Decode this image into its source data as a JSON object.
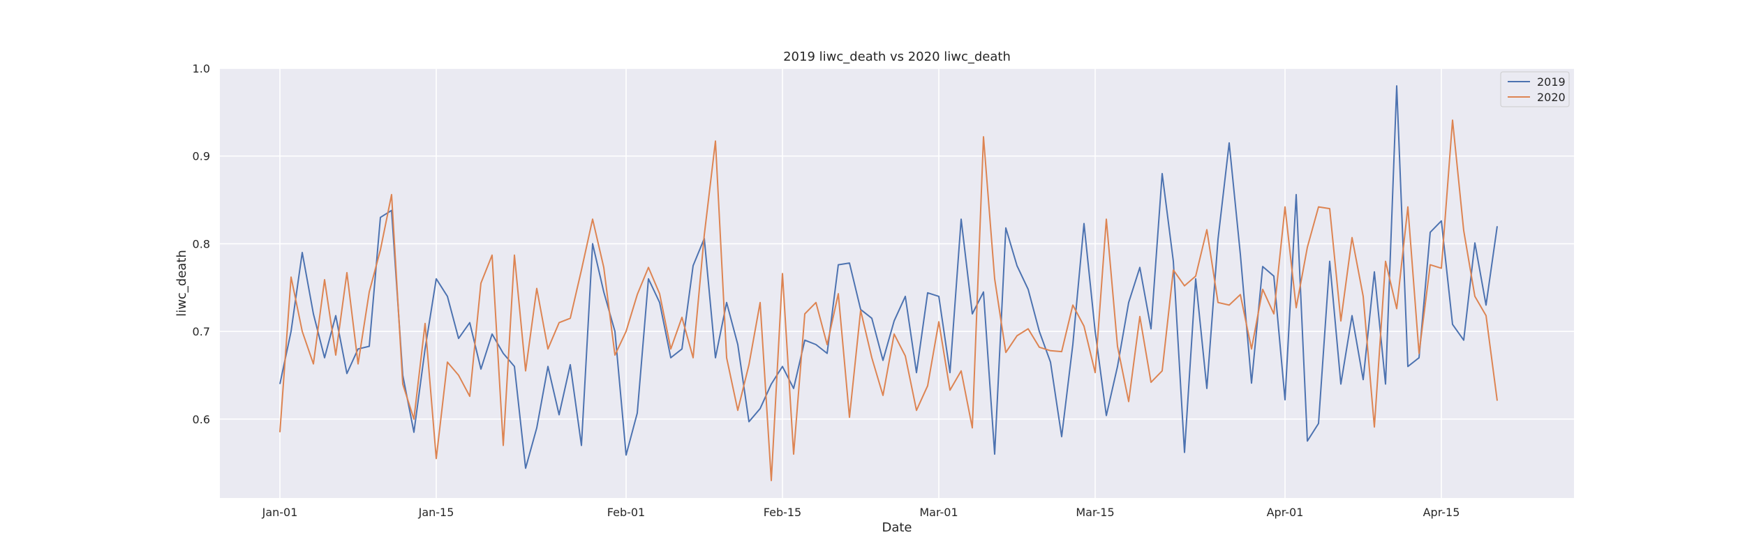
{
  "chart_data": {
    "type": "line",
    "title": "2019 liwc_death vs 2020 liwc_death",
    "xlabel": "Date",
    "ylabel": "liwc_death",
    "x_start": "Jan-01",
    "x_ticks": [
      "Jan-01",
      "Jan-15",
      "Feb-01",
      "Feb-15",
      "Mar-01",
      "Mar-15",
      "Apr-01",
      "Apr-15"
    ],
    "y_ticks": [
      "0.6",
      "0.7",
      "0.8",
      "0.9",
      "1.0"
    ],
    "ylim": [
      0.51,
      1.0
    ],
    "grid": true,
    "legend_position": "top-right",
    "series": [
      {
        "name": "2019",
        "color": "#4c72b0",
        "values": [
          0.64,
          0.7,
          0.79,
          0.72,
          0.67,
          0.718,
          0.652,
          0.68,
          0.683,
          0.83,
          0.838,
          0.65,
          0.585,
          0.68,
          0.76,
          0.74,
          0.692,
          0.71,
          0.657,
          0.697,
          0.675,
          0.66,
          0.544,
          0.59,
          0.66,
          0.605,
          0.662,
          0.57,
          0.8,
          0.745,
          0.7,
          0.559,
          0.607,
          0.76,
          0.733,
          0.67,
          0.68,
          0.775,
          0.806,
          0.67,
          0.733,
          0.685,
          0.597,
          0.612,
          0.64,
          0.66,
          0.635,
          0.69,
          0.685,
          0.675,
          0.776,
          0.778,
          0.725,
          0.715,
          0.667,
          0.712,
          0.74,
          0.653,
          0.744,
          0.74,
          0.653,
          0.828,
          0.72,
          0.745,
          0.56,
          0.818,
          0.775,
          0.748,
          0.7,
          0.665,
          0.58,
          0.685,
          0.823,
          0.7,
          0.604,
          0.66,
          0.733,
          0.773,
          0.703,
          0.88,
          0.78,
          0.562,
          0.76,
          0.635,
          0.805,
          0.915,
          0.788,
          0.641,
          0.774,
          0.763,
          0.622,
          0.856,
          0.575,
          0.595,
          0.78,
          0.64,
          0.718,
          0.645,
          0.768,
          0.64,
          0.98,
          0.66,
          0.67,
          0.813,
          0.826,
          0.708,
          0.69,
          0.801,
          0.73,
          0.82
        ]
      },
      {
        "name": "2020",
        "color": "#dd8452",
        "values": [
          0.585,
          0.762,
          0.7,
          0.663,
          0.759,
          0.673,
          0.767,
          0.663,
          0.745,
          0.793,
          0.856,
          0.64,
          0.6,
          0.709,
          0.555,
          0.665,
          0.65,
          0.626,
          0.755,
          0.787,
          0.57,
          0.787,
          0.655,
          0.749,
          0.68,
          0.71,
          0.715,
          0.77,
          0.828,
          0.773,
          0.673,
          0.7,
          0.742,
          0.773,
          0.743,
          0.68,
          0.716,
          0.67,
          0.81,
          0.917,
          0.67,
          0.61,
          0.662,
          0.733,
          0.53,
          0.766,
          0.56,
          0.72,
          0.733,
          0.685,
          0.743,
          0.602,
          0.724,
          0.67,
          0.627,
          0.697,
          0.672,
          0.61,
          0.638,
          0.711,
          0.633,
          0.655,
          0.59,
          0.922,
          0.76,
          0.676,
          0.695,
          0.703,
          0.682,
          0.678,
          0.677,
          0.73,
          0.706,
          0.653,
          0.828,
          0.683,
          0.62,
          0.717,
          0.642,
          0.655,
          0.77,
          0.752,
          0.763,
          0.816,
          0.733,
          0.73,
          0.742,
          0.68,
          0.748,
          0.72,
          0.842,
          0.727,
          0.796,
          0.842,
          0.84,
          0.712,
          0.807,
          0.74,
          0.591,
          0.78,
          0.726,
          0.842,
          0.675,
          0.776,
          0.772,
          0.941,
          0.815,
          0.74,
          0.718,
          0.621
        ]
      }
    ]
  }
}
